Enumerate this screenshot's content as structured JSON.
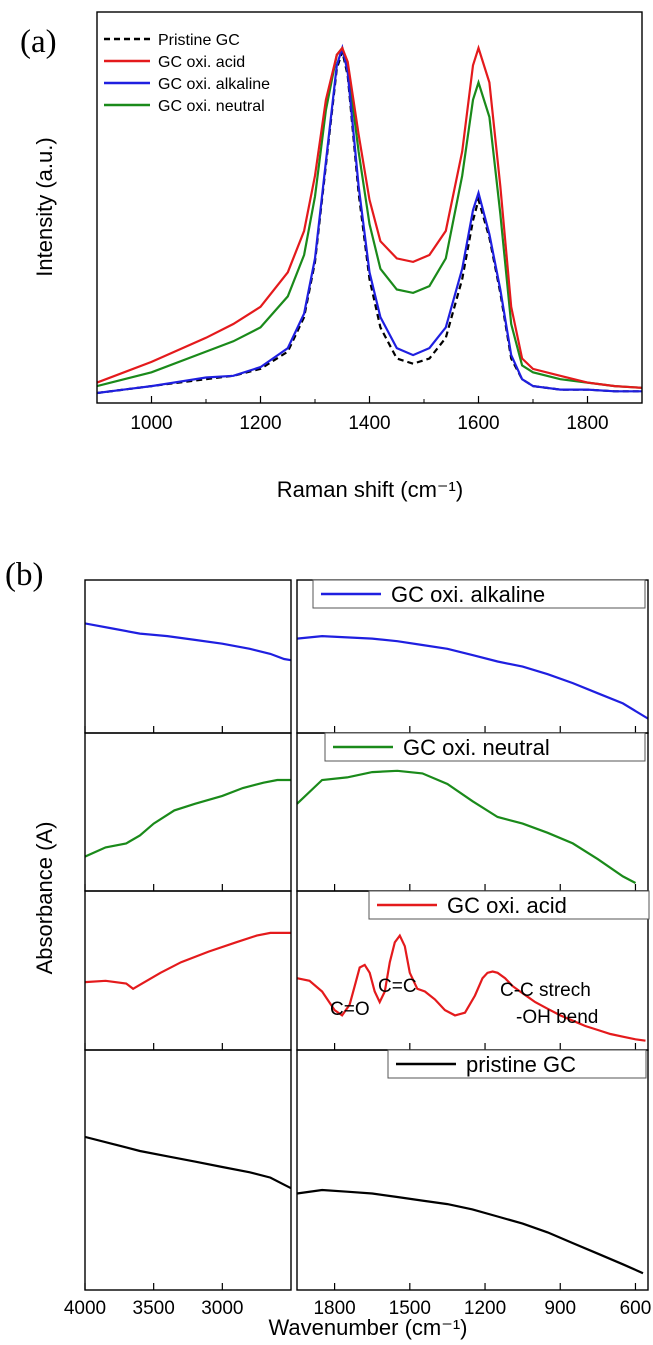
{
  "chart_data": [
    {
      "panel_label": "(a)",
      "type": "line",
      "xlabel": "Raman shift (cm⁻¹)",
      "ylabel": "Intensity (a.u.)",
      "xlim": [
        900,
        1900
      ],
      "ylim": [
        0,
        1.05
      ],
      "xticks": [
        1000,
        1200,
        1400,
        1600,
        1800
      ],
      "yticks_labeled": false,
      "legend_position": "top-left",
      "series": [
        {
          "name": "Pristine GC",
          "color": "#000000",
          "dashed": true,
          "x": [
            900,
            1000,
            1100,
            1150,
            1200,
            1250,
            1280,
            1300,
            1320,
            1340,
            1350,
            1360,
            1380,
            1400,
            1420,
            1450,
            1480,
            1510,
            1540,
            1570,
            1590,
            1600,
            1620,
            1640,
            1660,
            1680,
            1700,
            1750,
            1800,
            1850,
            1900
          ],
          "y": [
            0.0,
            0.02,
            0.04,
            0.05,
            0.07,
            0.12,
            0.22,
            0.38,
            0.66,
            0.94,
            0.99,
            0.92,
            0.58,
            0.33,
            0.19,
            0.1,
            0.085,
            0.1,
            0.16,
            0.33,
            0.5,
            0.56,
            0.45,
            0.29,
            0.1,
            0.04,
            0.02,
            0.01,
            0.01,
            0.005,
            0.005
          ]
        },
        {
          "name": "GC oxi. acid",
          "color": "#e41a1c",
          "dashed": false,
          "x": [
            900,
            1000,
            1100,
            1150,
            1200,
            1250,
            1280,
            1300,
            1320,
            1340,
            1350,
            1360,
            1380,
            1400,
            1420,
            1450,
            1480,
            1510,
            1540,
            1570,
            1590,
            1600,
            1620,
            1640,
            1660,
            1680,
            1700,
            1750,
            1800,
            1850,
            1900
          ],
          "y": [
            0.03,
            0.09,
            0.16,
            0.2,
            0.25,
            0.35,
            0.47,
            0.63,
            0.85,
            0.98,
            1.0,
            0.96,
            0.75,
            0.56,
            0.44,
            0.39,
            0.38,
            0.4,
            0.47,
            0.7,
            0.95,
            1.0,
            0.9,
            0.6,
            0.25,
            0.1,
            0.07,
            0.05,
            0.03,
            0.02,
            0.015
          ]
        },
        {
          "name": "GC oxi. alkaline",
          "color": "#1f1fe0",
          "dashed": false,
          "x": [
            900,
            1000,
            1100,
            1150,
            1200,
            1250,
            1280,
            1300,
            1320,
            1340,
            1350,
            1360,
            1380,
            1400,
            1420,
            1450,
            1480,
            1510,
            1540,
            1570,
            1590,
            1600,
            1620,
            1640,
            1660,
            1680,
            1700,
            1750,
            1800,
            1850,
            1900
          ],
          "y": [
            0.0,
            0.02,
            0.045,
            0.05,
            0.075,
            0.13,
            0.23,
            0.39,
            0.67,
            0.95,
            1.0,
            0.93,
            0.6,
            0.35,
            0.22,
            0.13,
            0.11,
            0.13,
            0.19,
            0.36,
            0.53,
            0.58,
            0.46,
            0.3,
            0.11,
            0.04,
            0.02,
            0.01,
            0.01,
            0.005,
            0.005
          ]
        },
        {
          "name": "GC oxi. neutral",
          "color": "#1a8a1a",
          "dashed": false,
          "x": [
            900,
            1000,
            1100,
            1150,
            1200,
            1250,
            1280,
            1300,
            1320,
            1340,
            1350,
            1360,
            1380,
            1400,
            1420,
            1450,
            1480,
            1510,
            1540,
            1570,
            1590,
            1600,
            1620,
            1640,
            1660,
            1680,
            1700,
            1750,
            1800,
            1850,
            1900
          ],
          "y": [
            0.02,
            0.06,
            0.12,
            0.15,
            0.19,
            0.28,
            0.4,
            0.57,
            0.82,
            0.98,
            1.0,
            0.95,
            0.7,
            0.49,
            0.36,
            0.3,
            0.29,
            0.31,
            0.39,
            0.63,
            0.85,
            0.9,
            0.8,
            0.52,
            0.2,
            0.08,
            0.06,
            0.04,
            0.03,
            0.02,
            0.015
          ]
        }
      ]
    },
    {
      "panel_label": "(b)",
      "type": "line",
      "xlabel": "Wavenumber (cm⁻¹)",
      "ylabel": "Absorbance (A)",
      "segments": [
        {
          "xlim": [
            4000,
            2500
          ],
          "xticks": [
            4000,
            3500,
            3000
          ],
          "xticklabels": [
            "4000",
            "3500",
            "3000"
          ]
        },
        {
          "xlim": [
            1950,
            550
          ],
          "xticks": [
            1800,
            1500,
            1200,
            900,
            600
          ],
          "xticklabels": [
            "1800",
            "1500",
            "1200",
            "900",
            "600"
          ]
        }
      ],
      "yticks_labeled": false,
      "annotations": [
        "C=O",
        "C=C",
        "C-C strech",
        "-OH bend"
      ],
      "series": [
        {
          "name": "GC oxi. alkaline",
          "color": "#1f1fe0",
          "left": {
            "x": [
              4000,
              3800,
              3600,
              3400,
              3200,
              3000,
              2800,
              2650,
              2550,
              2500
            ],
            "y": [
              0.8,
              0.76,
              0.72,
              0.7,
              0.67,
              0.64,
              0.6,
              0.56,
              0.52,
              0.51
            ]
          },
          "right": {
            "x": [
              1950,
              1850,
              1750,
              1650,
              1550,
              1450,
              1350,
              1250,
              1150,
              1050,
              950,
              850,
              750,
              650,
              550
            ],
            "y": [
              0.68,
              0.7,
              0.69,
              0.68,
              0.66,
              0.63,
              0.6,
              0.55,
              0.5,
              0.46,
              0.4,
              0.33,
              0.25,
              0.17,
              0.05
            ]
          }
        },
        {
          "name": "GC oxi. neutral",
          "color": "#1a8a1a",
          "left": {
            "x": [
              4000,
              3850,
              3700,
              3600,
              3500,
              3350,
              3200,
              3000,
              2850,
              2700,
              2600,
              2500
            ],
            "y": [
              0.2,
              0.27,
              0.3,
              0.36,
              0.45,
              0.55,
              0.6,
              0.66,
              0.72,
              0.76,
              0.78,
              0.78
            ]
          },
          "right": {
            "x": [
              1950,
              1850,
              1750,
              1650,
              1550,
              1450,
              1350,
              1250,
              1150,
              1050,
              950,
              850,
              750,
              650,
              600
            ],
            "y": [
              0.6,
              0.78,
              0.8,
              0.84,
              0.85,
              0.83,
              0.75,
              0.62,
              0.5,
              0.45,
              0.38,
              0.3,
              0.18,
              0.05,
              0.0
            ]
          }
        },
        {
          "name": "GC oxi. acid",
          "color": "#e41a1c",
          "left": {
            "x": [
              4000,
              3850,
              3700,
              3650,
              3600,
              3450,
              3300,
              3100,
              2900,
              2750,
              2650,
              2550,
              2500
            ],
            "y": [
              0.45,
              0.46,
              0.44,
              0.4,
              0.43,
              0.52,
              0.6,
              0.68,
              0.75,
              0.8,
              0.82,
              0.82,
              0.82
            ]
          },
          "right": {
            "x": [
              1950,
              1900,
              1850,
              1800,
              1770,
              1740,
              1720,
              1700,
              1680,
              1660,
              1640,
              1620,
              1600,
              1580,
              1560,
              1540,
              1520,
              1500,
              1470,
              1440,
              1400,
              1360,
              1320,
              1280,
              1240,
              1210,
              1190,
              1170,
              1150,
              1120,
              1090,
              1060,
              1030,
              1000,
              950,
              900,
              850,
              800,
              750,
              700,
              650,
              600,
              560
            ],
            "y": [
              0.48,
              0.46,
              0.38,
              0.24,
              0.2,
              0.28,
              0.42,
              0.56,
              0.58,
              0.52,
              0.38,
              0.3,
              0.38,
              0.6,
              0.75,
              0.8,
              0.72,
              0.52,
              0.4,
              0.38,
              0.32,
              0.24,
              0.2,
              0.22,
              0.35,
              0.48,
              0.52,
              0.53,
              0.52,
              0.48,
              0.42,
              0.38,
              0.34,
              0.3,
              0.25,
              0.2,
              0.16,
              0.12,
              0.09,
              0.06,
              0.04,
              0.02,
              0.01
            ]
          }
        },
        {
          "name": "pristine GC",
          "color": "#000000",
          "left": {
            "x": [
              4000,
              3800,
              3600,
              3400,
              3200,
              3000,
              2800,
              2650,
              2550,
              2500
            ],
            "y": [
              0.82,
              0.78,
              0.74,
              0.71,
              0.68,
              0.65,
              0.62,
              0.59,
              0.55,
              0.53
            ]
          },
          "right": {
            "x": [
              1950,
              1850,
              1750,
              1650,
              1550,
              1450,
              1350,
              1250,
              1150,
              1050,
              950,
              850,
              750,
              650,
              570
            ],
            "y": [
              0.5,
              0.52,
              0.51,
              0.5,
              0.48,
              0.46,
              0.44,
              0.41,
              0.37,
              0.33,
              0.28,
              0.22,
              0.16,
              0.1,
              0.05
            ]
          }
        }
      ]
    }
  ]
}
